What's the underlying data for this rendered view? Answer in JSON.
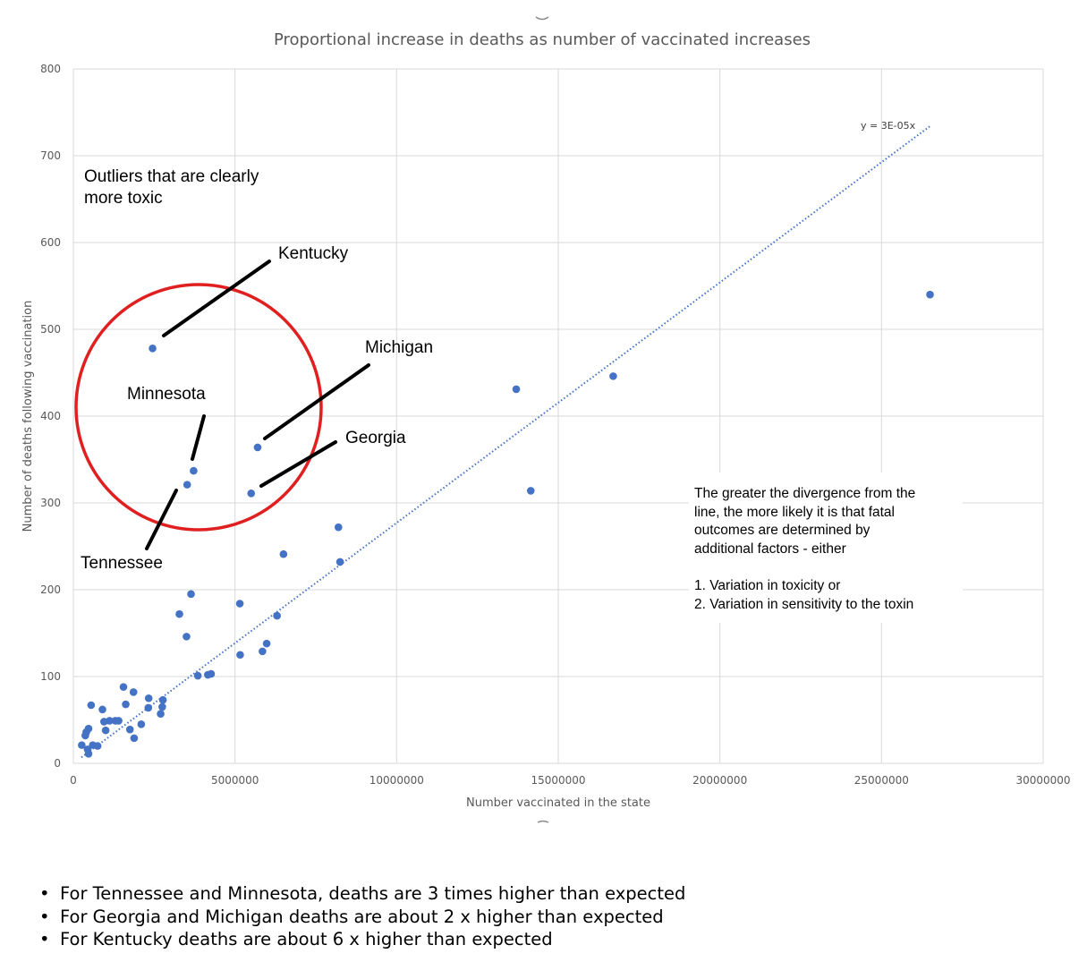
{
  "chart_data": {
    "type": "scatter",
    "title": "Proportional increase in deaths as  number of vaccinated increases",
    "xlabel": "Number vaccinated in the state",
    "ylabel": "Number of deaths following vaccination",
    "xlim": [
      0,
      30000000
    ],
    "ylim": [
      0,
      800
    ],
    "xticks": [
      "0",
      "5000000",
      "10000000",
      "15000000",
      "20000000",
      "25000000",
      "30000000"
    ],
    "yticks": [
      "0",
      "100",
      "200",
      "300",
      "400",
      "500",
      "600",
      "700",
      "800"
    ],
    "grid": true,
    "point_color": "#4472c4",
    "trendline": {
      "label": "y = 3E-05x",
      "slope": 2.77e-05,
      "x_range": [
        250000,
        26500000
      ],
      "style": "dotted",
      "color": "#4472c4"
    },
    "series": [
      {
        "points": [
          [
            260000,
            21
          ],
          [
            370000,
            32
          ],
          [
            400000,
            36
          ],
          [
            440000,
            16
          ],
          [
            470000,
            11
          ],
          [
            470000,
            40
          ],
          [
            550000,
            67
          ],
          [
            600000,
            21
          ],
          [
            750000,
            20
          ],
          [
            900000,
            62
          ],
          [
            950000,
            48
          ],
          [
            1000000,
            38
          ],
          [
            1120000,
            49
          ],
          [
            1300000,
            49
          ],
          [
            1400000,
            49
          ],
          [
            1550000,
            88
          ],
          [
            1620000,
            68
          ],
          [
            1750000,
            39
          ],
          [
            1860000,
            82
          ],
          [
            1880000,
            29
          ],
          [
            2100000,
            45
          ],
          [
            2320000,
            64
          ],
          [
            2330000,
            75
          ],
          [
            2700000,
            57
          ],
          [
            2750000,
            65
          ],
          [
            2770000,
            73
          ],
          [
            2450000,
            478
          ],
          [
            3280000,
            172
          ],
          [
            3500000,
            146
          ],
          [
            3520000,
            321
          ],
          [
            3640000,
            195
          ],
          [
            3720000,
            337
          ],
          [
            3850000,
            101
          ],
          [
            4160000,
            102
          ],
          [
            4260000,
            103
          ],
          [
            5150000,
            184
          ],
          [
            5160000,
            125
          ],
          [
            5500000,
            311
          ],
          [
            5700000,
            364
          ],
          [
            5850000,
            129
          ],
          [
            5980000,
            138
          ],
          [
            6300000,
            170
          ],
          [
            6500000,
            241
          ],
          [
            8200000,
            272
          ],
          [
            8250000,
            232
          ],
          [
            13700000,
            431
          ],
          [
            14150000,
            314
          ],
          [
            16700000,
            446
          ],
          [
            26500000,
            540
          ]
        ]
      }
    ],
    "annotations": {
      "outliers": [
        "Outliers that are clearly",
        "more toxic"
      ],
      "states": {
        "kentucky": "Kentucky",
        "minnesota": "Minnesota",
        "michigan": "Michigan",
        "georgia": "Georgia",
        "tennessee": "Tennessee"
      },
      "divergence_note": [
        "The greater the divergence from the",
        "line, the more likely it is that fatal",
        "outcomes are determined by",
        "additional factors - either",
        "",
        "1. Variation in toxicity or",
        "2. Variation in sensitivity to the toxin"
      ],
      "circle_color": "#e02020"
    }
  },
  "bullets": {
    "marker": "•",
    "items": [
      "For Tennessee and Minnesota, deaths are 3 times higher than expected",
      "For Georgia and Michigan deaths are about 2 x higher than expected",
      "For Kentucky deaths are about 6 x higher than expected"
    ]
  }
}
